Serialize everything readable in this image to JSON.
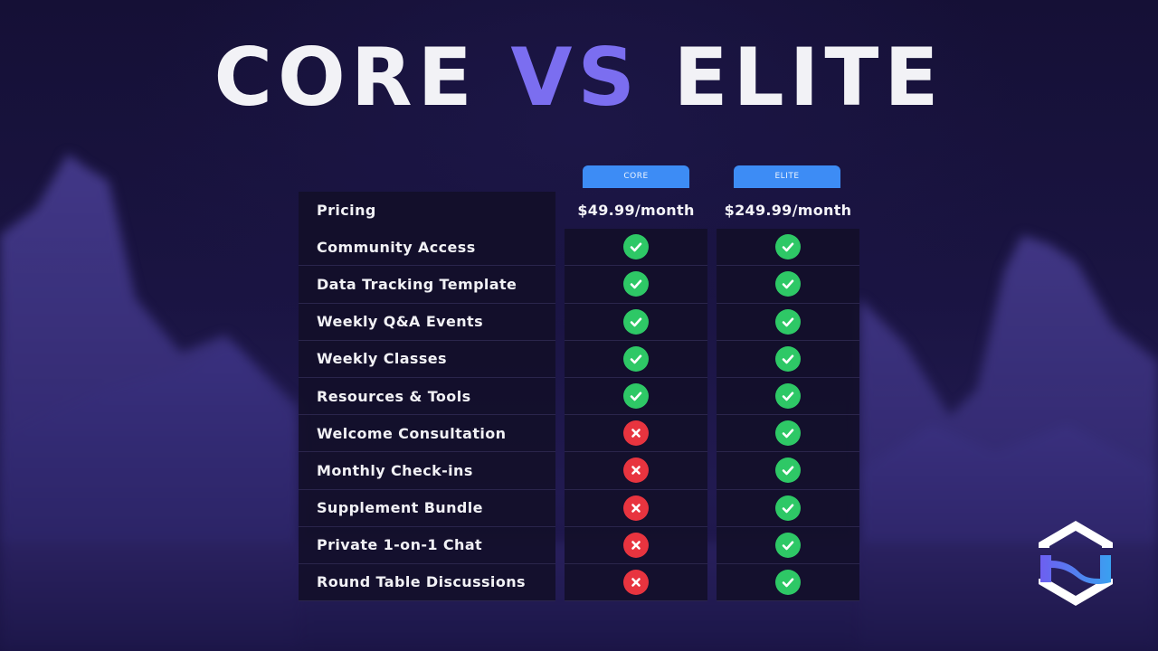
{
  "title": {
    "left": "CORE",
    "vs": "VS",
    "right": "ELITE"
  },
  "plans": [
    {
      "tab": "CORE",
      "price": "$49.99/month"
    },
    {
      "tab": "ELITE",
      "price": "$249.99/month"
    }
  ],
  "pricing_label": "Pricing",
  "features": [
    {
      "label": "Community Access",
      "core": "check",
      "elite": "check"
    },
    {
      "label": "Data Tracking Template",
      "core": "check",
      "elite": "check"
    },
    {
      "label": "Weekly Q&A Events",
      "core": "check",
      "elite": "check"
    },
    {
      "label": "Weekly Classes",
      "core": "check",
      "elite": "check"
    },
    {
      "label": "Resources & Tools",
      "core": "check",
      "elite": "check"
    },
    {
      "label": "Welcome Consultation",
      "core": "cross",
      "elite": "check"
    },
    {
      "label": "Monthly Check-ins",
      "core": "cross",
      "elite": "check"
    },
    {
      "label": "Supplement Bundle",
      "core": "cross",
      "elite": "check"
    },
    {
      "label": "Private 1-on-1 Chat",
      "core": "cross",
      "elite": "check"
    },
    {
      "label": "Round Table Discussions",
      "core": "cross",
      "elite": "check"
    }
  ],
  "colors": {
    "accent": "#7b6ef0",
    "tab": "#3d8cf5",
    "check": "#2ec866",
    "cross": "#e8343f"
  }
}
